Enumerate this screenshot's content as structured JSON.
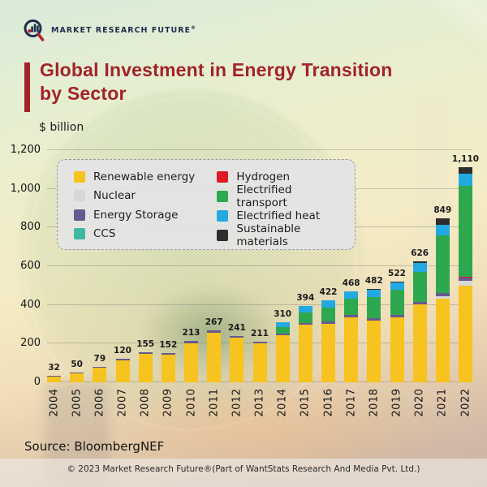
{
  "brand": {
    "logo_text": "MARKET RESEARCH FUTURE",
    "registered": "®"
  },
  "title": {
    "line1": "Global Investment in Energy Transition",
    "line2": "by Sector"
  },
  "axis_unit": "$ billion",
  "source": "Source: BloombergNEF",
  "copyright": "© 2023 Market Research Future®(Part of WantStats Research And Media Pvt. Ltd.)",
  "colors": {
    "title_red": "#a2232a",
    "brand_navy": "#1f2e4e",
    "grid_gray": "#6e6e6e",
    "legend_bg": "#e4e4e4"
  },
  "chart_data": {
    "type": "bar",
    "stacked": true,
    "title": "Global Investment in Energy Transition by Sector",
    "xlabel": "",
    "ylabel": "$ billion",
    "ylim": [
      0,
      1200
    ],
    "ytick_values": [
      0,
      200,
      400,
      600,
      800,
      1000,
      1200
    ],
    "ytick_labels": [
      "0",
      "200",
      "400",
      "600",
      "800",
      "1,000",
      "1,200"
    ],
    "grid": true,
    "legend_position": "top-left-overlay",
    "categories": [
      "2004",
      "2005",
      "2006",
      "2007",
      "2008",
      "2009",
      "2010",
      "2011",
      "2012",
      "2013",
      "2014",
      "2015",
      "2016",
      "2017",
      "2018",
      "2019",
      "2020",
      "2021",
      "2022"
    ],
    "totals": [
      32,
      50,
      79,
      120,
      155,
      152,
      213,
      267,
      241,
      211,
      310,
      394,
      422,
      468,
      482,
      522,
      626,
      849,
      1110
    ],
    "total_labels": [
      "32",
      "50",
      "79",
      "120",
      "155",
      "152",
      "213",
      "267",
      "241",
      "211",
      "310",
      "394",
      "422",
      "468",
      "482",
      "522",
      "626",
      "849",
      "1,110"
    ],
    "series": [
      {
        "name": "Renewable energy",
        "color": "#f7c31e",
        "values": [
          30,
          47,
          75,
          113,
          147,
          144,
          203,
          254,
          229,
          200,
          243,
          298,
          302,
          334,
          318,
          334,
          402,
          434,
          499
        ]
      },
      {
        "name": "Nuclear",
        "color": "#d8d8d8",
        "values": [
          0,
          0,
          0,
          0,
          0,
          0,
          0,
          0,
          0,
          0,
          0,
          0,
          0,
          0,
          0,
          0,
          0,
          12,
          24
        ]
      },
      {
        "name": "Energy Storage",
        "color": "#675a8f",
        "values": [
          2,
          3,
          4,
          7,
          8,
          8,
          10,
          13,
          12,
          11,
          7,
          8,
          12,
          13,
          14,
          13,
          15,
          17,
          20
        ]
      },
      {
        "name": "CCS",
        "color": "#3cb9a0",
        "values": [
          0,
          0,
          0,
          0,
          0,
          0,
          0,
          0,
          0,
          0,
          0,
          0,
          0,
          0,
          0,
          0,
          0,
          0,
          0
        ]
      },
      {
        "name": "Hydrogen",
        "color": "#de1b22",
        "values": [
          0,
          0,
          0,
          0,
          0,
          0,
          0,
          0,
          0,
          0,
          0,
          0,
          0,
          0,
          0,
          0,
          0,
          0,
          2
        ]
      },
      {
        "name": "Electrified transport",
        "color": "#2ea84f",
        "values": [
          0,
          0,
          0,
          0,
          0,
          0,
          0,
          0,
          0,
          0,
          36,
          57,
          72,
          85,
          110,
          130,
          155,
          295,
          470
        ]
      },
      {
        "name": "Electrified heat",
        "color": "#23a9e1",
        "values": [
          0,
          0,
          0,
          0,
          0,
          0,
          0,
          0,
          0,
          0,
          24,
          31,
          36,
          36,
          35,
          38,
          44,
          57,
          63
        ]
      },
      {
        "name": "Sustainable materials",
        "color": "#2d2d2d",
        "values": [
          0,
          0,
          0,
          0,
          0,
          0,
          0,
          0,
          0,
          0,
          0,
          0,
          0,
          0,
          5,
          7,
          10,
          34,
          32
        ]
      }
    ],
    "legend_columns": [
      [
        0,
        1,
        2,
        3
      ],
      [
        4,
        5,
        6,
        7
      ]
    ]
  }
}
